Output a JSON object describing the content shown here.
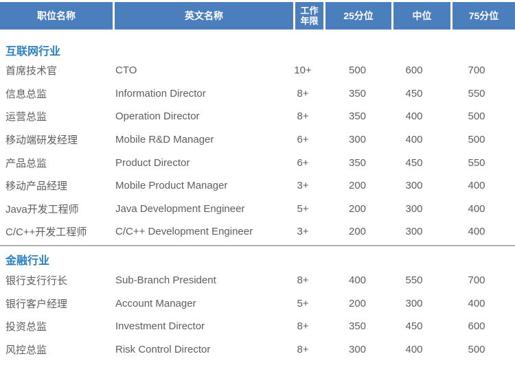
{
  "colors": {
    "header_bg": "#4b7ebd",
    "header_text": "#ffffff",
    "section_title_text": "#2b80c4",
    "body_text": "#5d5d5d",
    "divider": "#b0b0b0"
  },
  "header": {
    "columns": [
      "职位名称",
      "英文名称",
      "工作年限",
      "25分位",
      "中位",
      "75分位"
    ]
  },
  "sections": [
    {
      "title": "互联网行业",
      "rows": [
        {
          "position": "首席技术官",
          "english": "CTO",
          "years": "10+",
          "p25": "500",
          "median": "600",
          "p75": "700"
        },
        {
          "position": "信息总监",
          "english": "Information Director",
          "years": "8+",
          "p25": "350",
          "median": "450",
          "p75": "550"
        },
        {
          "position": "运营总监",
          "english": "Operation Director",
          "years": "8+",
          "p25": "350",
          "median": "400",
          "p75": "500"
        },
        {
          "position": "移动端研发经理",
          "english": "Mobile R&D Manager",
          "years": "6+",
          "p25": "300",
          "median": "400",
          "p75": "500"
        },
        {
          "position": "产品总监",
          "english": "Product Director",
          "years": "6+",
          "p25": "350",
          "median": "450",
          "p75": "550"
        },
        {
          "position": "移动产品经理",
          "english": "Mobile Product Manager",
          "years": "3+",
          "p25": "200",
          "median": "300",
          "p75": "400"
        },
        {
          "position": "Java开发工程师",
          "english": "Java Development Engineer",
          "years": "5+",
          "p25": "200",
          "median": "300",
          "p75": "400"
        },
        {
          "position": "C/C++开发工程师",
          "english": "C/C++ Development Engineer",
          "years": "3+",
          "p25": "200",
          "median": "300",
          "p75": "400"
        }
      ]
    },
    {
      "title": "金融行业",
      "rows": [
        {
          "position": "银行支行行长",
          "english": "Sub-Branch President",
          "years": "8+",
          "p25": "400",
          "median": "550",
          "p75": "700"
        },
        {
          "position": "银行客户经理",
          "english": "Account Manager",
          "years": "5+",
          "p25": "200",
          "median": "300",
          "p75": "400"
        },
        {
          "position": "投资总监",
          "english": "Investment Director",
          "years": "8+",
          "p25": "350",
          "median": "450",
          "p75": "600"
        },
        {
          "position": "风控总监",
          "english": "Risk Control Director",
          "years": "8+",
          "p25": "300",
          "median": "400",
          "p75": "500"
        }
      ]
    }
  ]
}
